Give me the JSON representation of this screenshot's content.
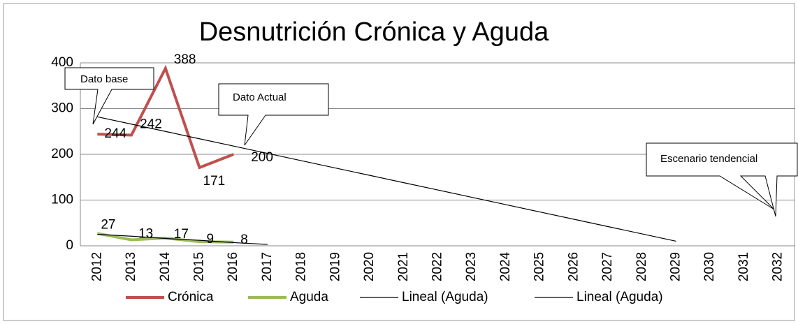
{
  "chart_data": {
    "type": "line",
    "title": "Desnutrición Crónica y Aguda",
    "categories": [
      "2012",
      "2013",
      "2014",
      "2015",
      "2016",
      "2017",
      "2018",
      "2019",
      "2020",
      "2021",
      "2022",
      "2023",
      "2024",
      "2025",
      "2026",
      "2027",
      "2028",
      "2029",
      "2030",
      "2031",
      "2032"
    ],
    "series": [
      {
        "name": "Crónica",
        "color": "#c0504d",
        "width": 4,
        "labels": true,
        "values": [
          244,
          242,
          388,
          171,
          200,
          null,
          null,
          null,
          null,
          null,
          null,
          null,
          null,
          null,
          null,
          null,
          null,
          null,
          null,
          null,
          null
        ]
      },
      {
        "name": "Aguda",
        "color": "#9bbb59",
        "width": 4,
        "labels": true,
        "values": [
          27,
          13,
          17,
          9,
          8,
          null,
          null,
          null,
          null,
          null,
          null,
          null,
          null,
          null,
          null,
          null,
          null,
          null,
          null,
          null,
          null
        ]
      },
      {
        "name": "Lineal (Aguda)",
        "color": "#000000",
        "width": 1.2,
        "labels": false,
        "values": [
          282,
          266,
          250,
          234,
          218,
          202,
          186,
          170,
          154,
          138,
          122,
          106,
          90,
          74,
          58,
          42,
          26,
          10,
          null,
          null,
          null
        ]
      },
      {
        "name": "Lineal (Aguda)",
        "color": "#000000",
        "width": 1.2,
        "labels": false,
        "values": [
          25,
          21,
          16,
          12,
          7,
          3,
          null,
          null,
          null,
          null,
          null,
          null,
          null,
          null,
          null,
          null,
          null,
          null,
          null,
          null,
          null
        ]
      }
    ],
    "annotations": [
      "Dato base",
      "Dato Actual",
      "Escenario tendencial"
    ],
    "ylim": [
      0,
      400
    ],
    "yticks": [
      0,
      100,
      200,
      300,
      400
    ],
    "grid": true
  }
}
